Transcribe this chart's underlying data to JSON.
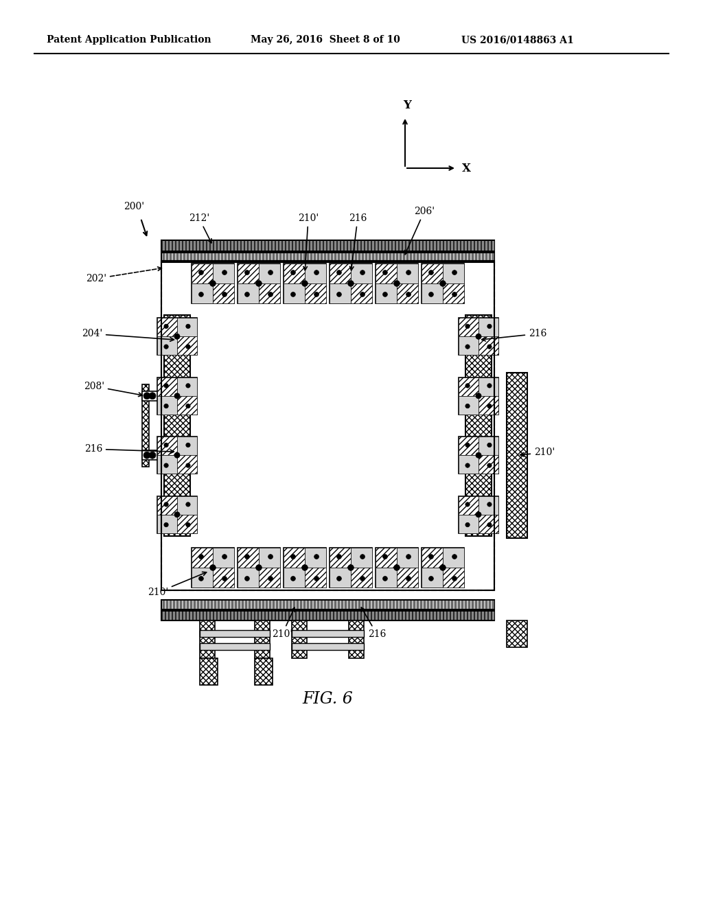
{
  "title_left": "Patent Application Publication",
  "title_mid": "May 26, 2016  Sheet 8 of 10",
  "title_right": "US 2016/0148863 A1",
  "fig_label": "FIG. 6",
  "bg_color": "#ffffff"
}
